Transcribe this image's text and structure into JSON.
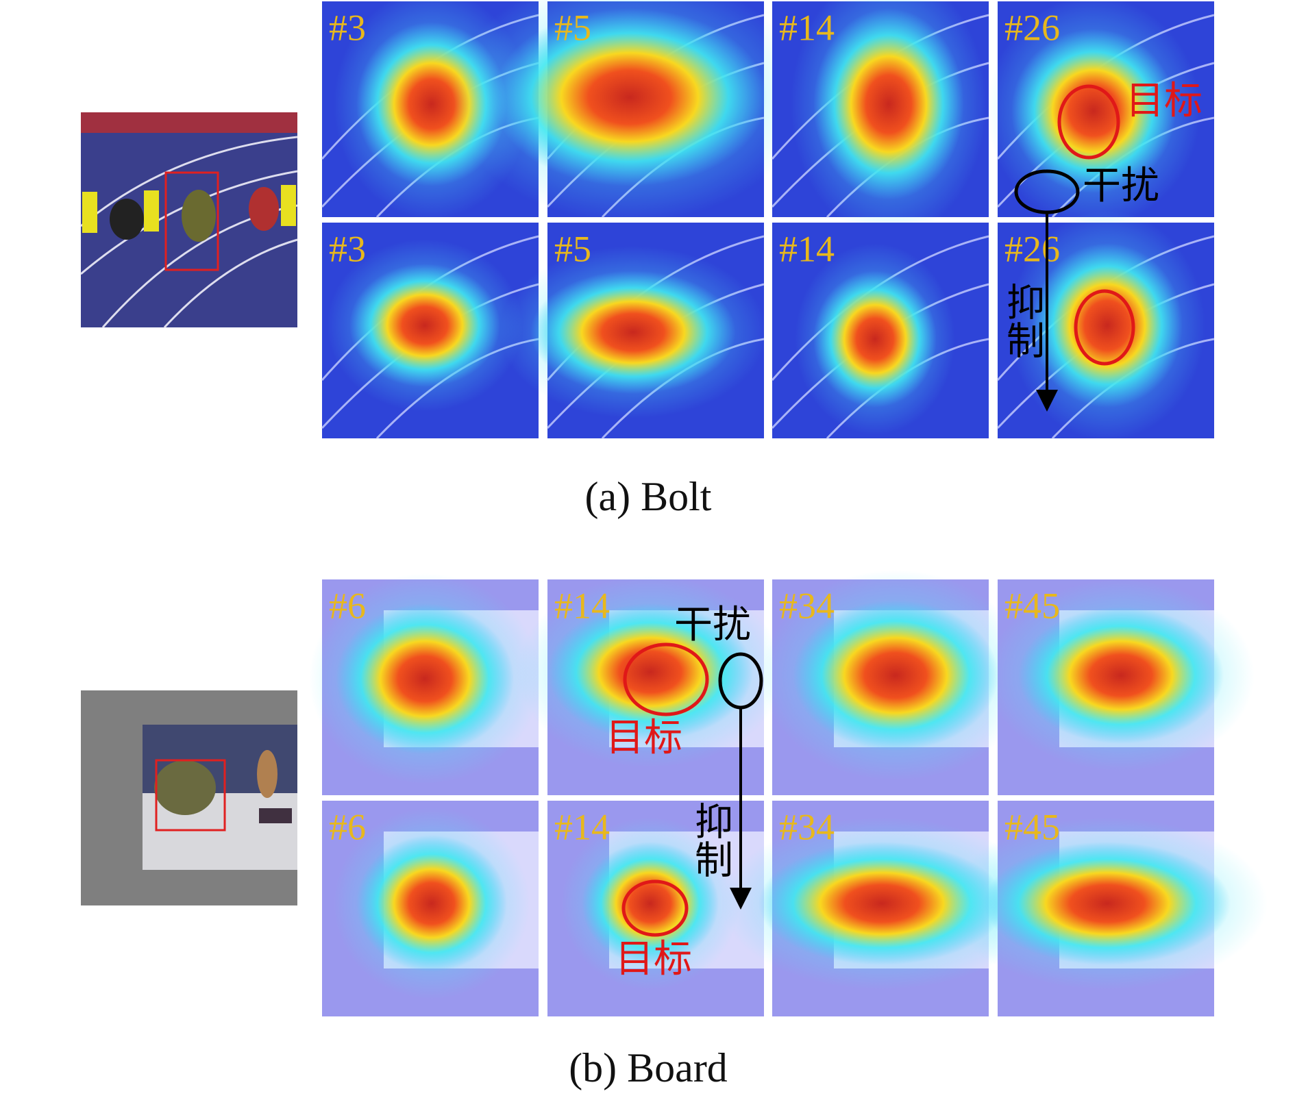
{
  "panels": [
    {
      "caption": "(a) Bolt",
      "rows": [
        [
          "#3",
          "#5",
          "#14",
          "#26"
        ],
        [
          "#3",
          "#5",
          "#14",
          "#26"
        ]
      ],
      "annotations": [
        "目标",
        "干扰",
        "抑制"
      ]
    },
    {
      "caption": "(b) Board",
      "rows": [
        [
          "#6",
          "#14",
          "#34",
          "#45"
        ],
        [
          "#6",
          "#14",
          "#34",
          "#45"
        ]
      ],
      "annotations": [
        "干扰",
        "目标",
        "抑制",
        "目标"
      ]
    }
  ]
}
